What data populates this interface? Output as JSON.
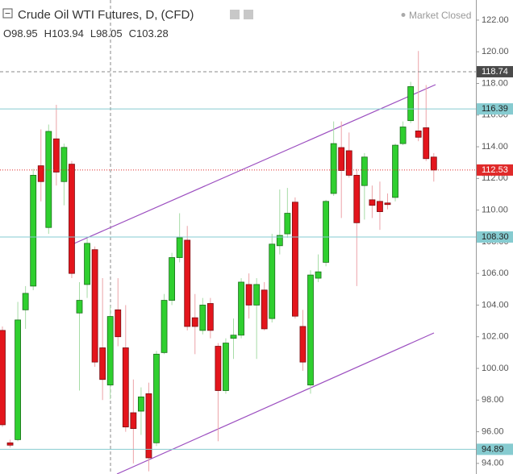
{
  "chart_data": {
    "type": "candlestick",
    "title": "Crude Oil WTI Futures, D, (CFD)",
    "status": "Market Closed",
    "ohlc": [
      {
        "label": "O",
        "value": 98.95
      },
      {
        "label": "H",
        "value": 103.94
      },
      {
        "label": "L",
        "value": 98.05
      },
      {
        "label": "C",
        "value": 103.28
      }
    ],
    "open": [
      102.4,
      95.3,
      95.5,
      103.7,
      105.2,
      112.8,
      108.9,
      114.5,
      111.8,
      112.9,
      103.5,
      105.3,
      107.5,
      101.3,
      98.95,
      103.7,
      101.3,
      97.2,
      97.3,
      98.4,
      95.3,
      101.0,
      104.3,
      107.0,
      108.1,
      103.2,
      102.4,
      104.1,
      101.4,
      98.6,
      101.9,
      102.1,
      105.3,
      104.0,
      104.95,
      103.15,
      107.75,
      108.5,
      110.5,
      102.65,
      98.95,
      105.7,
      106.7,
      111.05,
      113.95,
      113.75,
      112.2,
      111.55,
      110.65,
      110.55,
      110.45,
      110.8,
      114.2,
      115.65,
      115.0,
      115.2,
      113.35
    ],
    "high": [
      102.65,
      95.5,
      104.2,
      105.2,
      112.6,
      115.1,
      115.4,
      116.65,
      114.2,
      113.1,
      105.45,
      108.2,
      107.7,
      105.7,
      103.94,
      105.7,
      104.0,
      99.3,
      98.8,
      99.1,
      101.1,
      104.7,
      107.3,
      109.8,
      109.0,
      104.7,
      104.45,
      104.45,
      101.6,
      101.9,
      103.15,
      105.7,
      106.0,
      105.7,
      105.45,
      108.5,
      111.3,
      111.4,
      110.8,
      103.7,
      106.2,
      107.2,
      110.65,
      115.6,
      115.6,
      114.9,
      112.6,
      113.6,
      111.55,
      111.8,
      111.05,
      114.2,
      115.6,
      118.1,
      120.05,
      117.9,
      113.6
    ],
    "low": [
      96.3,
      95.0,
      95.4,
      102.5,
      104.94,
      110.55,
      108.5,
      111.55,
      110.3,
      105.7,
      98.6,
      104.45,
      100.1,
      98.0,
      98.05,
      101.4,
      96.0,
      94.0,
      95.8,
      93.5,
      95.1,
      100.9,
      104.0,
      106.7,
      102.4,
      100.9,
      102.15,
      101.9,
      95.4,
      98.4,
      100.6,
      101.9,
      103.15,
      100.6,
      102.4,
      102.9,
      107.2,
      108.25,
      103.15,
      99.85,
      98.4,
      105.45,
      106.45,
      110.9,
      109.5,
      112.05,
      105.2,
      109.4,
      109.5,
      108.75,
      110.05,
      110.55,
      114.1,
      115.5,
      114.35,
      113.1,
      111.8
    ],
    "close": [
      96.44,
      95.15,
      103.06,
      104.74,
      112.2,
      111.8,
      114.97,
      112.4,
      113.96,
      106.0,
      104.3,
      107.9,
      100.4,
      99.3,
      103.28,
      102.0,
      96.3,
      96.2,
      98.2,
      94.35,
      100.9,
      104.3,
      107.0,
      108.25,
      102.65,
      102.65,
      104.0,
      102.4,
      98.6,
      101.6,
      102.1,
      105.45,
      104.0,
      105.3,
      102.5,
      107.85,
      108.4,
      109.8,
      103.3,
      100.4,
      105.9,
      106.1,
      110.55,
      114.2,
      112.5,
      112.2,
      109.2,
      113.35,
      110.3,
      109.9,
      110.35,
      114.1,
      115.25,
      117.8,
      114.6,
      113.25,
      112.53
    ],
    "up_color": "#2fcf2f",
    "down_color": "#e3151c",
    "up_wick_color": "#a6dca6",
    "down_wick_color": "#eca3a8",
    "ylim": [
      93.33,
      123.27
    ],
    "yticks": [
      {
        "value": 94,
        "label": "94.00"
      },
      {
        "value": 96,
        "label": "96.00"
      },
      {
        "value": 98,
        "label": "98.00"
      },
      {
        "value": 100,
        "label": "100.00"
      },
      {
        "value": 102,
        "label": "102.00"
      },
      {
        "value": 104,
        "label": "104.00"
      },
      {
        "value": 106,
        "label": "106.00"
      },
      {
        "value": 108,
        "label": "108.00"
      },
      {
        "value": 110,
        "label": "110.00"
      },
      {
        "value": 112,
        "label": "112.00"
      },
      {
        "value": 114,
        "label": "114.00"
      },
      {
        "value": 116,
        "label": "116.00"
      },
      {
        "value": 118,
        "label": "118.00"
      },
      {
        "value": 120,
        "label": "120.00"
      },
      {
        "value": 122,
        "label": "122.00"
      }
    ],
    "price_lines": [
      {
        "value": 118.74,
        "label": "118.74",
        "color": "#8a8a8a",
        "dash": "4 3",
        "label_fill": "#4a4a4a",
        "text_color": "#ffffff"
      },
      {
        "value": 116.39,
        "label": "116.39",
        "color": "#86cbd0",
        "dash": "",
        "label_fill": "#86cbd0",
        "text_color": "#222222"
      },
      {
        "value": 112.53,
        "label": "112.53",
        "color": "#e02a2a",
        "dash": "1 2",
        "label_fill": "#e02a2a",
        "text_color": "#ffffff"
      },
      {
        "value": 108.3,
        "label": "108.30",
        "color": "#86cbd0",
        "dash": "",
        "label_fill": "#86cbd0",
        "text_color": "#222222"
      },
      {
        "value": 94.89,
        "label": "94.89",
        "color": "#86cbd0",
        "dash": "",
        "label_fill": "#86cbd0",
        "text_color": "#222222"
      }
    ],
    "grid": false
  }
}
